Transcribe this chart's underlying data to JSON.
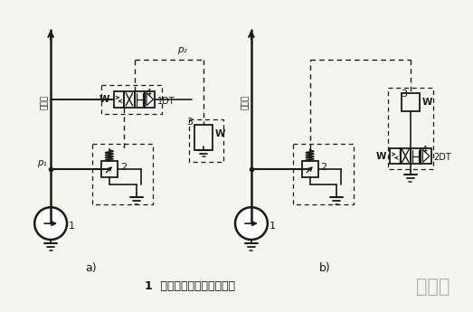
{
  "title": "1  双溢流阀式二级调压回路",
  "watermark": "迪因诺",
  "bg_color": "#f5f5f0",
  "line_color": "#1a1a1a",
  "label_a": "a)",
  "label_b": "b)",
  "vertical_label": "往系统"
}
